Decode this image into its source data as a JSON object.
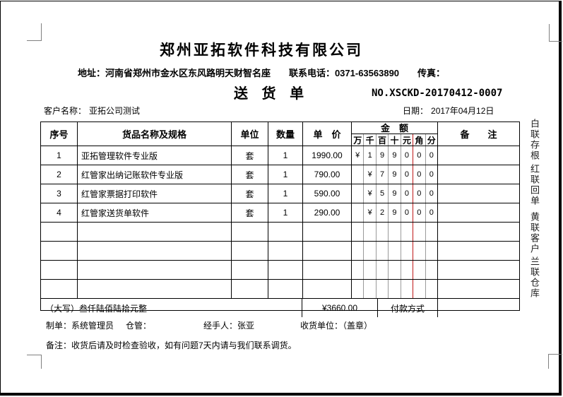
{
  "header": {
    "company": "郑州亚拓软件科技有限公司",
    "address_line": "地址：河南省郑州市金水区东风路明天财智名座　　联系电话：0371-63563890　　传真：",
    "doc_title": "送 货 单",
    "doc_no": "NO.XSCKD-20170412-0007",
    "customer_label": "客户名称：",
    "customer": "亚拓公司测试",
    "date_label": "日期：",
    "date": "2017年04月12日"
  },
  "table": {
    "headers": {
      "seq": "序号",
      "name": "货品名称及规格",
      "unit": "单位",
      "qty": "数量",
      "price": "单　价",
      "amount": "金　额",
      "remark": "备　　注"
    },
    "amount_units": [
      "万",
      "千",
      "百",
      "十",
      "元",
      "角",
      "分"
    ],
    "rows": [
      {
        "seq": "1",
        "name": "亚拓管理软件专业版",
        "unit": "套",
        "qty": "1",
        "price": "1990.00",
        "digits": [
          "¥",
          "1",
          "9",
          "9",
          "0",
          "0",
          "0"
        ]
      },
      {
        "seq": "2",
        "name": "红管家出纳记账软件专业版",
        "unit": "套",
        "qty": "1",
        "price": "790.00",
        "digits": [
          "",
          "¥",
          "7",
          "9",
          "0",
          "0",
          "0"
        ]
      },
      {
        "seq": "3",
        "name": "红管家票据打印软件",
        "unit": "套",
        "qty": "1",
        "price": "590.00",
        "digits": [
          "",
          "¥",
          "5",
          "9",
          "0",
          "0",
          "0"
        ]
      },
      {
        "seq": "4",
        "name": "红管家送货单软件",
        "unit": "套",
        "qty": "1",
        "price": "290.00",
        "digits": [
          "",
          "¥",
          "2",
          "9",
          "0",
          "0",
          "0"
        ]
      },
      {
        "seq": "",
        "name": "",
        "unit": "",
        "qty": "",
        "price": "",
        "digits": [
          "",
          "",
          "",
          "",
          "",
          "",
          ""
        ]
      },
      {
        "seq": "",
        "name": "",
        "unit": "",
        "qty": "",
        "price": "",
        "digits": [
          "",
          "",
          "",
          "",
          "",
          "",
          ""
        ]
      },
      {
        "seq": "",
        "name": "",
        "unit": "",
        "qty": "",
        "price": "",
        "digits": [
          "",
          "",
          "",
          "",
          "",
          "",
          ""
        ]
      },
      {
        "seq": "",
        "name": "",
        "unit": "",
        "qty": "",
        "price": "",
        "digits": [
          "",
          "",
          "",
          "",
          "",
          "",
          ""
        ]
      }
    ],
    "summary": {
      "amount_in_words": "（大写）叁仟陆佰陆拾元整",
      "total": "¥3660.00",
      "payment_label": "付款方式",
      "payment_value": ""
    }
  },
  "footer": {
    "maker": "制单：系统管理员",
    "warehouse": "仓管：",
    "handler": "经手人：张亚",
    "receiver": "收货单位：（盖章）",
    "note": "备注：收货后请及时检查验收，如有问题7天内请与我们联系调货。"
  },
  "side_labels": [
    "白联存根",
    "红联回单",
    "黄联客户",
    "兰联仓库"
  ],
  "colors": {
    "red_divider": "#c01818",
    "corner_mark": "#808080",
    "table_border": "#000000"
  }
}
